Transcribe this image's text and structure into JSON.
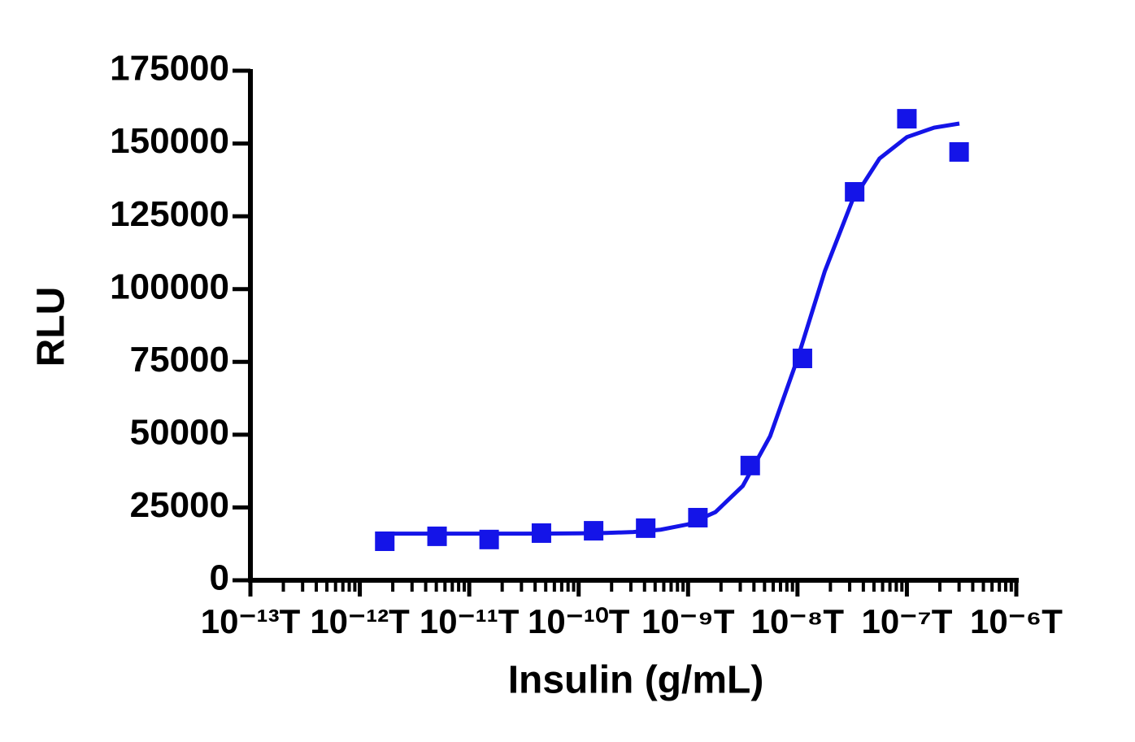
{
  "chart_data": {
    "type": "scatter",
    "x_label": "Insulin (g/mL)",
    "y_label": "RLU",
    "log_x": true,
    "xlim": [
      1e-13,
      1e-06
    ],
    "xticks": [
      {
        "value": 1e-13,
        "label": "10⁻¹³T"
      },
      {
        "value": 1e-12,
        "label": "10⁻¹²T"
      },
      {
        "value": 1e-11,
        "label": "10⁻¹¹T"
      },
      {
        "value": 1e-10,
        "label": "10⁻¹⁰T"
      },
      {
        "value": 1e-09,
        "label": "10⁻⁹T"
      },
      {
        "value": 1e-08,
        "label": "10⁻⁸T"
      },
      {
        "value": 1e-07,
        "label": "10⁻⁷T"
      },
      {
        "value": 1e-06,
        "label": "10⁻⁶T"
      }
    ],
    "ylim": [
      0,
      175000
    ],
    "yticks": [
      0,
      25000,
      50000,
      75000,
      100000,
      125000,
      150000,
      175000
    ],
    "color": "#1414e8",
    "x": [
      1.69e-12,
      5.08e-12,
      1.52e-11,
      4.57e-11,
      1.37e-10,
      4.1e-10,
      1.23e-09,
      3.7e-09,
      1.11e-08,
      3.33e-08,
      1e-07,
      3e-07
    ],
    "values": [
      13400,
      15100,
      14000,
      16200,
      17000,
      17900,
      21500,
      39400,
      76200,
      133400,
      158500,
      147100
    ],
    "curve": {
      "x": [
        1.69e-12,
        3.162e-12,
        5.623e-12,
        1e-11,
        1.778e-11,
        3.162e-11,
        5.623e-11,
        1e-10,
        1.778e-10,
        3.162e-10,
        5.623e-10,
        1e-09,
        1.778e-09,
        3.162e-09,
        5.623e-09,
        1e-08,
        1.778e-08,
        3.162e-08,
        5.623e-08,
        1e-07,
        1.778e-07,
        3.02e-07
      ],
      "values": [
        16000,
        16000,
        16000,
        16001,
        16008,
        16018,
        16044,
        16104,
        16246,
        16582,
        17379,
        19213,
        23400,
        32380,
        49490,
        76040,
        106150,
        130240,
        144850,
        152200,
        155460,
        156850
      ]
    }
  }
}
